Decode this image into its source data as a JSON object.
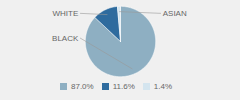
{
  "chart_data": {
    "type": "pie",
    "categories": [
      "BLACK",
      "WHITE",
      "ASIAN"
    ],
    "values": [
      87.0,
      11.6,
      1.4
    ],
    "value_labels": [
      "87.0%",
      "11.6%",
      "1.4%"
    ],
    "colors": [
      "#8eafc2",
      "#2e6b9e",
      "#d4e5ef"
    ],
    "legend": "bottom"
  }
}
